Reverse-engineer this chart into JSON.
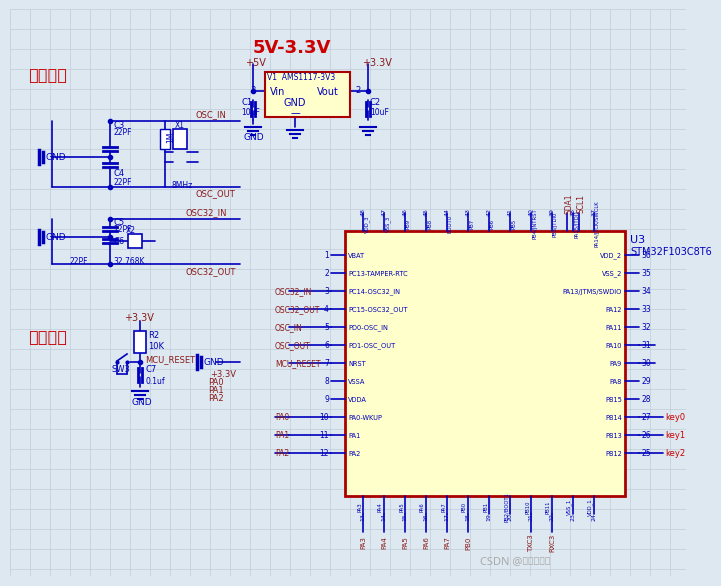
{
  "bg_color": "#dde8f0",
  "grid_color": "#c0cdd8",
  "blue": "#0000bb",
  "red": "#cc0000",
  "dark_red": "#8b1a1a",
  "yellow_fill": "#ffffcc",
  "comp_border": "#aa0000",
  "watermark": "CSDN @嵌入式基地",
  "watermark_color": "#aaaaaa",
  "title_5v": "5V-3.3V",
  "label_crystal": "晶振电路",
  "label_reset": "复位电路",
  "ic_name": "STM32F103C8T6",
  "ic_ref": "U3"
}
